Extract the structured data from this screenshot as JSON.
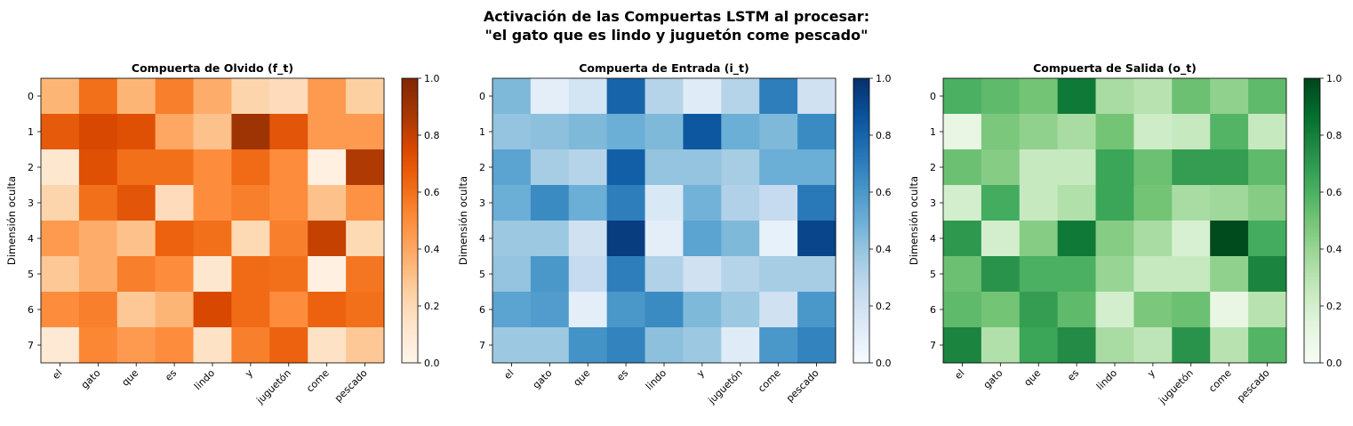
{
  "chart_data": {
    "type": "heatmap",
    "title": "Activación de las Compuertas LSTM al procesar:",
    "subtitle": "\"el gato que es lindo y juguetón come pescado\"",
    "panels": [
      {
        "title": "Compuerta de Olvido (f_t)",
        "ylabel": "Dimensión oculta",
        "colormap": "Oranges",
        "colormap_stops": [
          "#fff5eb",
          "#fee6ce",
          "#fdd0a2",
          "#fdae6b",
          "#fd8d3c",
          "#f16913",
          "#d94801",
          "#a63603",
          "#7f2704"
        ],
        "xticks": [
          "el",
          "gato",
          "que",
          "es",
          "lindo",
          "y",
          "juguetón",
          "come",
          "pescado"
        ],
        "yticks": [
          "0",
          "1",
          "2",
          "3",
          "4",
          "5",
          "6",
          "7"
        ],
        "colorbar_ticks": [
          "0.0",
          "0.2",
          "0.4",
          "0.6",
          "0.8",
          "1.0"
        ],
        "vmin": 0,
        "vmax": 1,
        "values": [
          [
            0.35,
            0.6,
            0.35,
            0.55,
            0.38,
            0.22,
            0.18,
            0.45,
            0.25
          ],
          [
            0.68,
            0.75,
            0.72,
            0.4,
            0.3,
            0.9,
            0.7,
            0.45,
            0.45
          ],
          [
            0.12,
            0.72,
            0.6,
            0.6,
            0.5,
            0.62,
            0.5,
            0.04,
            0.85
          ],
          [
            0.22,
            0.6,
            0.7,
            0.18,
            0.5,
            0.55,
            0.5,
            0.3,
            0.48
          ],
          [
            0.45,
            0.38,
            0.3,
            0.65,
            0.6,
            0.2,
            0.55,
            0.8,
            0.2
          ],
          [
            0.28,
            0.38,
            0.55,
            0.5,
            0.12,
            0.62,
            0.6,
            0.04,
            0.58
          ],
          [
            0.5,
            0.55,
            0.28,
            0.35,
            0.75,
            0.62,
            0.5,
            0.65,
            0.6
          ],
          [
            0.1,
            0.52,
            0.45,
            0.5,
            0.15,
            0.55,
            0.65,
            0.15,
            0.28
          ]
        ]
      },
      {
        "title": "Compuerta de Entrada (i_t)",
        "ylabel": "Dimensión oculta",
        "colormap": "Blues",
        "colormap_stops": [
          "#f7fbff",
          "#deebf7",
          "#c6dbef",
          "#9ecae1",
          "#6baed6",
          "#4292c6",
          "#2171b5",
          "#08519c",
          "#08306b"
        ],
        "xticks": [
          "el",
          "gato",
          "que",
          "es",
          "lindo",
          "y",
          "juguetón",
          "come",
          "pescado"
        ],
        "yticks": [
          "0",
          "1",
          "2",
          "3",
          "4",
          "5",
          "6",
          "7"
        ],
        "colorbar_ticks": [
          "0.0",
          "0.2",
          "0.4",
          "0.6",
          "0.8",
          "1.0"
        ],
        "vmin": 0,
        "vmax": 1,
        "values": [
          [
            0.45,
            0.1,
            0.18,
            0.8,
            0.3,
            0.12,
            0.3,
            0.7,
            0.2
          ],
          [
            0.4,
            0.42,
            0.45,
            0.5,
            0.45,
            0.85,
            0.5,
            0.45,
            0.65
          ],
          [
            0.55,
            0.35,
            0.3,
            0.82,
            0.4,
            0.4,
            0.35,
            0.5,
            0.5
          ],
          [
            0.5,
            0.65,
            0.5,
            0.7,
            0.15,
            0.48,
            0.32,
            0.25,
            0.72
          ],
          [
            0.38,
            0.38,
            0.2,
            0.95,
            0.1,
            0.55,
            0.45,
            0.08,
            0.92
          ],
          [
            0.4,
            0.6,
            0.25,
            0.7,
            0.32,
            0.2,
            0.3,
            0.35,
            0.35
          ],
          [
            0.55,
            0.58,
            0.1,
            0.6,
            0.65,
            0.45,
            0.38,
            0.2,
            0.6
          ],
          [
            0.38,
            0.38,
            0.62,
            0.68,
            0.42,
            0.38,
            0.12,
            0.6,
            0.68
          ]
        ]
      },
      {
        "title": "Compuerta de Salida (o_t)",
        "ylabel": "Dimensión oculta",
        "colormap": "Greens",
        "colormap_stops": [
          "#f7fcf5",
          "#e5f5e0",
          "#c7e9c0",
          "#a1d99b",
          "#74c476",
          "#41ab5d",
          "#238b45",
          "#006d2c",
          "#00441b"
        ],
        "xticks": [
          "el",
          "gato",
          "que",
          "es",
          "lindo",
          "y",
          "juguetón",
          "come",
          "pescado"
        ],
        "yticks": [
          "0",
          "1",
          "2",
          "3",
          "4",
          "5",
          "6",
          "7"
        ],
        "colorbar_ticks": [
          "0.0",
          "0.2",
          "0.4",
          "0.6",
          "0.8",
          "1.0"
        ],
        "vmin": 0,
        "vmax": 1,
        "values": [
          [
            0.6,
            0.55,
            0.5,
            0.82,
            0.35,
            0.3,
            0.52,
            0.42,
            0.55
          ],
          [
            0.1,
            0.48,
            0.42,
            0.35,
            0.5,
            0.22,
            0.25,
            0.58,
            0.25
          ],
          [
            0.52,
            0.45,
            0.25,
            0.25,
            0.65,
            0.52,
            0.68,
            0.68,
            0.55
          ],
          [
            0.2,
            0.62,
            0.25,
            0.32,
            0.65,
            0.5,
            0.35,
            0.38,
            0.45
          ],
          [
            0.7,
            0.2,
            0.45,
            0.82,
            0.45,
            0.35,
            0.18,
            0.98,
            0.62
          ],
          [
            0.52,
            0.72,
            0.6,
            0.6,
            0.4,
            0.25,
            0.25,
            0.42,
            0.78
          ],
          [
            0.55,
            0.5,
            0.68,
            0.55,
            0.2,
            0.48,
            0.52,
            0.1,
            0.3
          ],
          [
            0.78,
            0.32,
            0.65,
            0.75,
            0.35,
            0.28,
            0.72,
            0.3,
            0.58
          ]
        ]
      }
    ]
  }
}
